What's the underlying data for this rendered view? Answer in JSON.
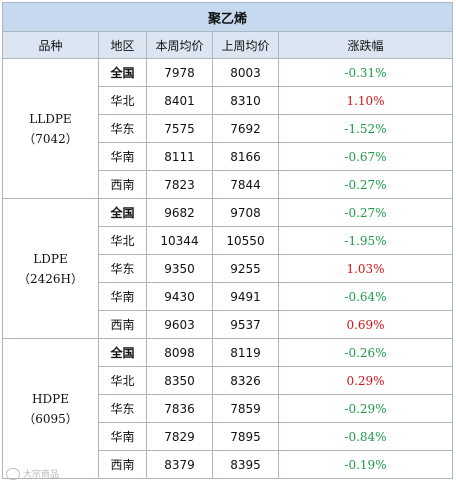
{
  "table": {
    "title": "聚乙烯",
    "headers": [
      "品种",
      "地区",
      "本周均价",
      "上周均价",
      "涨跌幅"
    ],
    "groups": [
      {
        "product_name": "LLDPE",
        "product_code": "（7042）",
        "rows": [
          {
            "region": "全国",
            "bold": true,
            "this_week": "7978",
            "last_week": "8003",
            "change": "-0.31%",
            "dir": "down"
          },
          {
            "region": "华北",
            "bold": false,
            "this_week": "8401",
            "last_week": "8310",
            "change": "1.10%",
            "dir": "up"
          },
          {
            "region": "华东",
            "bold": false,
            "this_week": "7575",
            "last_week": "7692",
            "change": "-1.52%",
            "dir": "down"
          },
          {
            "region": "华南",
            "bold": false,
            "this_week": "8111",
            "last_week": "8166",
            "change": "-0.67%",
            "dir": "down"
          },
          {
            "region": "西南",
            "bold": false,
            "this_week": "7823",
            "last_week": "7844",
            "change": "-0.27%",
            "dir": "down"
          }
        ]
      },
      {
        "product_name": "LDPE",
        "product_code": "（2426H）",
        "rows": [
          {
            "region": "全国",
            "bold": true,
            "this_week": "9682",
            "last_week": "9708",
            "change": "-0.27%",
            "dir": "down"
          },
          {
            "region": "华北",
            "bold": false,
            "this_week": "10344",
            "last_week": "10550",
            "change": "-1.95%",
            "dir": "down"
          },
          {
            "region": "华东",
            "bold": false,
            "this_week": "9350",
            "last_week": "9255",
            "change": "1.03%",
            "dir": "up"
          },
          {
            "region": "华南",
            "bold": false,
            "this_week": "9430",
            "last_week": "9491",
            "change": "-0.64%",
            "dir": "down"
          },
          {
            "region": "西南",
            "bold": false,
            "this_week": "9603",
            "last_week": "9537",
            "change": "0.69%",
            "dir": "up"
          }
        ]
      },
      {
        "product_name": "HDPE",
        "product_code": "（6095）",
        "rows": [
          {
            "region": "全国",
            "bold": true,
            "this_week": "8098",
            "last_week": "8119",
            "change": "-0.26%",
            "dir": "down"
          },
          {
            "region": "华北",
            "bold": false,
            "this_week": "8350",
            "last_week": "8326",
            "change": "0.29%",
            "dir": "up"
          },
          {
            "region": "华东",
            "bold": false,
            "this_week": "7836",
            "last_week": "7859",
            "change": "-0.29%",
            "dir": "down"
          },
          {
            "region": "华南",
            "bold": false,
            "this_week": "7829",
            "last_week": "7895",
            "change": "-0.84%",
            "dir": "down"
          },
          {
            "region": "西南",
            "bold": false,
            "this_week": "8379",
            "last_week": "8395",
            "change": "-0.19%",
            "dir": "down"
          }
        ]
      }
    ]
  },
  "colors": {
    "up": "#d41515",
    "down": "#1f9a4a",
    "title_bg": "#c6d9ee",
    "header_bg": "#dce6f2",
    "border": "#aeb6c2"
  },
  "watermark": {
    "text": "大宗商品"
  }
}
